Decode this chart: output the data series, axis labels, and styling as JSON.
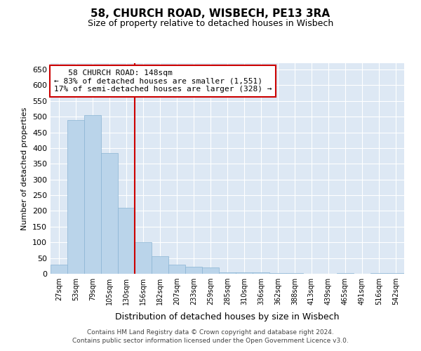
{
  "title": "58, CHURCH ROAD, WISBECH, PE13 3RA",
  "subtitle": "Size of property relative to detached houses in Wisbech",
  "xlabel": "Distribution of detached houses by size in Wisbech",
  "ylabel": "Number of detached properties",
  "footnote1": "Contains HM Land Registry data © Crown copyright and database right 2024.",
  "footnote2": "Contains public sector information licensed under the Open Government Licence v3.0.",
  "annotation_line1": "   58 CHURCH ROAD: 148sqm",
  "annotation_line2": "← 83% of detached houses are smaller (1,551)",
  "annotation_line3": "17% of semi-detached houses are larger (328) →",
  "bar_color": "#bad4ea",
  "bar_edge_color": "#8ab4d4",
  "vline_color": "#cc0000",
  "annotation_box_edge_color": "#cc0000",
  "background_color": "#dde8f4",
  "categories": [
    "27sqm",
    "53sqm",
    "79sqm",
    "105sqm",
    "130sqm",
    "156sqm",
    "182sqm",
    "207sqm",
    "233sqm",
    "259sqm",
    "285sqm",
    "310sqm",
    "336sqm",
    "362sqm",
    "388sqm",
    "413sqm",
    "439sqm",
    "465sqm",
    "491sqm",
    "516sqm",
    "542sqm"
  ],
  "values": [
    30,
    490,
    505,
    385,
    210,
    100,
    55,
    30,
    22,
    20,
    5,
    5,
    5,
    2,
    2,
    1,
    1,
    2,
    1,
    2,
    2
  ],
  "vline_x": 4.5,
  "ylim": [
    0,
    670
  ],
  "yticks": [
    0,
    50,
    100,
    150,
    200,
    250,
    300,
    350,
    400,
    450,
    500,
    550,
    600,
    650
  ]
}
